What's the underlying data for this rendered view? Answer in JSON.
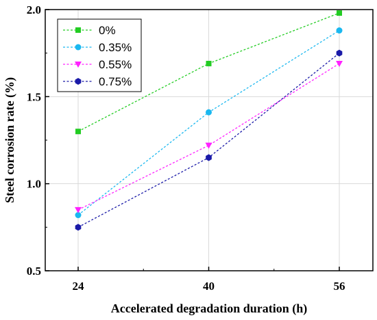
{
  "chart_data": {
    "type": "line",
    "title": "",
    "xlabel": "Accelerated degradation duration (h)",
    "ylabel": "Steel corrosion rate (%)",
    "x": [
      24,
      40,
      56
    ],
    "x_tick_labels": [
      "24",
      "40",
      "56"
    ],
    "ylim": [
      0.5,
      2.0
    ],
    "y_ticks": [
      0.5,
      1.0,
      1.5,
      2.0
    ],
    "y_tick_labels": [
      "0.5",
      "1.0",
      "1.5",
      "2.0"
    ],
    "grid": true,
    "legend_position": "top-left",
    "series": [
      {
        "name": "0%",
        "values": [
          1.3,
          1.69,
          1.98
        ],
        "color": "#22cc22",
        "marker": "square"
      },
      {
        "name": "0.35%",
        "values": [
          0.82,
          1.41,
          1.88
        ],
        "color": "#1ab8f0",
        "marker": "circle"
      },
      {
        "name": "0.55%",
        "values": [
          0.85,
          1.22,
          1.69
        ],
        "color": "#ff22ff",
        "marker": "triangle-down"
      },
      {
        "name": "0.75%",
        "values": [
          0.75,
          1.15,
          1.75
        ],
        "color": "#1a1aa8",
        "marker": "hexagon"
      }
    ]
  }
}
